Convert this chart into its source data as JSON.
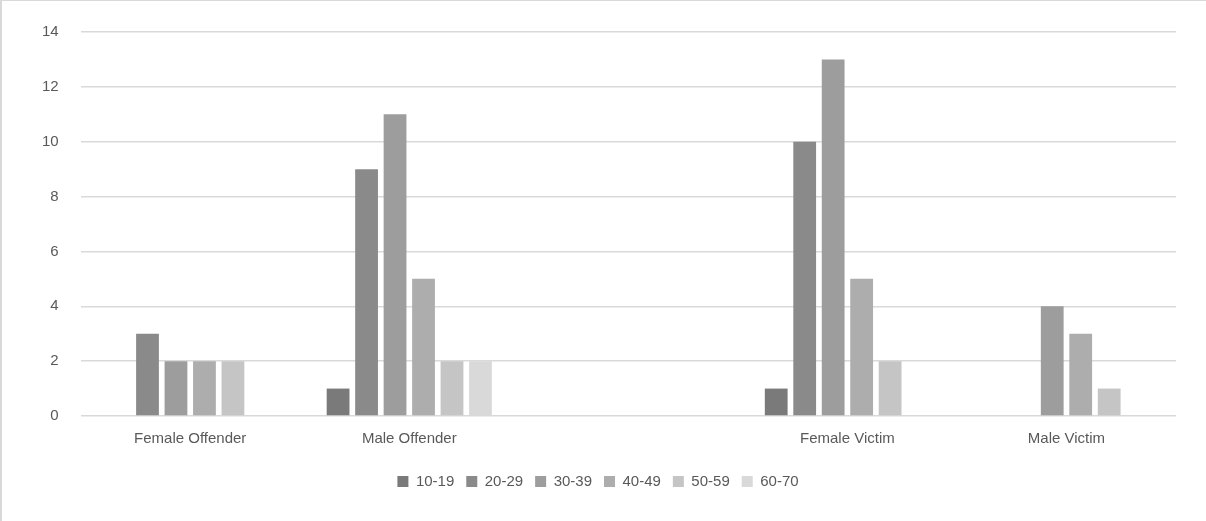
{
  "chart_data": {
    "type": "bar",
    "categories": [
      "Female Offender",
      "Male Offender",
      null,
      "Female Victim",
      "Male Victim"
    ],
    "series": [
      {
        "name": "10-19",
        "color": "#7a7a7a",
        "values": [
          null,
          1,
          null,
          1,
          null
        ]
      },
      {
        "name": "20-29",
        "color": "#8a8a8a",
        "values": [
          3,
          9,
          null,
          10,
          null
        ]
      },
      {
        "name": "30-39",
        "color": "#9d9d9d",
        "values": [
          2,
          11,
          null,
          13,
          4
        ]
      },
      {
        "name": "40-49",
        "color": "#adadad",
        "values": [
          2,
          5,
          null,
          5,
          3
        ]
      },
      {
        "name": "50-59",
        "color": "#c5c5c5",
        "values": [
          2,
          2,
          null,
          2,
          1
        ]
      },
      {
        "name": "60-70",
        "color": "#d9d9d9",
        "values": [
          null,
          2,
          null,
          null,
          null
        ]
      }
    ],
    "ylim": [
      0,
      14
    ],
    "yticks": [
      0,
      2,
      4,
      6,
      8,
      10,
      12,
      14
    ],
    "grid": "y",
    "legend": "bottom"
  }
}
